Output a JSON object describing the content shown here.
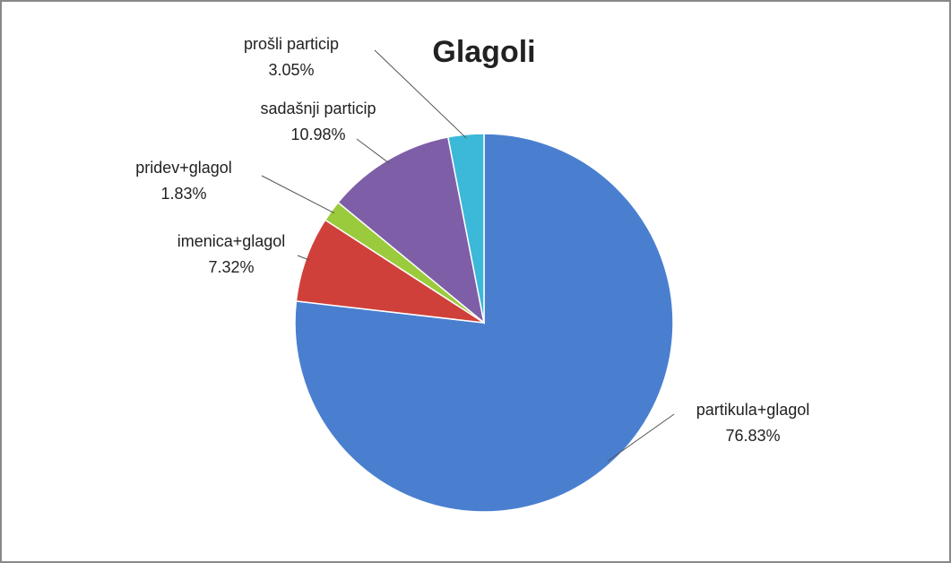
{
  "chart_data": {
    "type": "pie",
    "title": "Glagoli",
    "categories": [
      "partikula+glagol",
      "imenica+glagol",
      "pridev+glagol",
      "sadašnji particip",
      "prošli particip"
    ],
    "values": [
      76.83,
      7.32,
      1.83,
      10.98,
      3.05
    ],
    "value_labels": [
      "76.83%",
      "7.32%",
      "1.83%",
      "10.98%",
      "3.05%"
    ],
    "colors": [
      "#4a7fd0",
      "#d0403a",
      "#9acb3c",
      "#7f5ea8",
      "#3cb8d8"
    ]
  }
}
